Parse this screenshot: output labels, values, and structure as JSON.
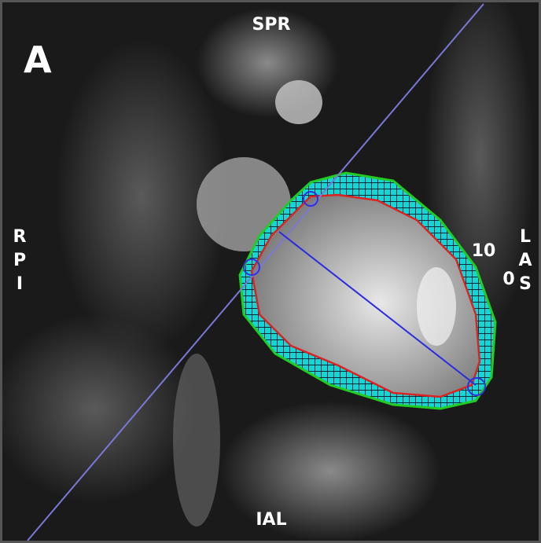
{
  "panel_label": "A",
  "orientation": {
    "top": "SPR",
    "bottom": "IAL",
    "left": [
      "R",
      "P",
      "I"
    ],
    "right": [
      "L",
      "A",
      "S"
    ]
  },
  "scale_labels": [
    "10",
    "0"
  ]
}
